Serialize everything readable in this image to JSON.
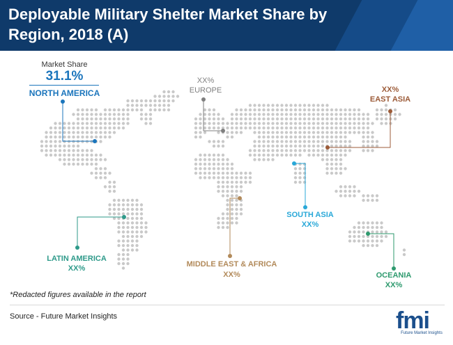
{
  "title": "Deployable Military Shelter Market Share by Region, 2018 (A)",
  "regions": {
    "north_america": {
      "name": "NORTH AMERICA",
      "caption": "Market Share",
      "value": "31.1%",
      "color": "#1b75bc"
    },
    "europe": {
      "name": "EUROPE",
      "value": "XX%",
      "color": "#7f7f7f"
    },
    "east_asia": {
      "name": "EAST ASIA",
      "value": "XX%",
      "color": "#9c5b38"
    },
    "south_asia": {
      "name": "SOUTH ASIA",
      "value": "XX%",
      "color": "#29a8d8"
    },
    "latin_america": {
      "name": "LATIN AMERICA",
      "value": "XX%",
      "color": "#2e9a8a"
    },
    "mea": {
      "name": "MIDDLE EAST & AFRICA",
      "value": "XX%",
      "color": "#b28a5a"
    },
    "oceania": {
      "name": "OCEANIA",
      "value": "XX%",
      "color": "#2e9a6e"
    }
  },
  "footnote": "*Redacted figures available in the report",
  "source": "Source - Future Market Insights",
  "logo": {
    "mark": "fmi",
    "tagline": "Future Market Insights"
  },
  "map_color": "#c9c9c9"
}
